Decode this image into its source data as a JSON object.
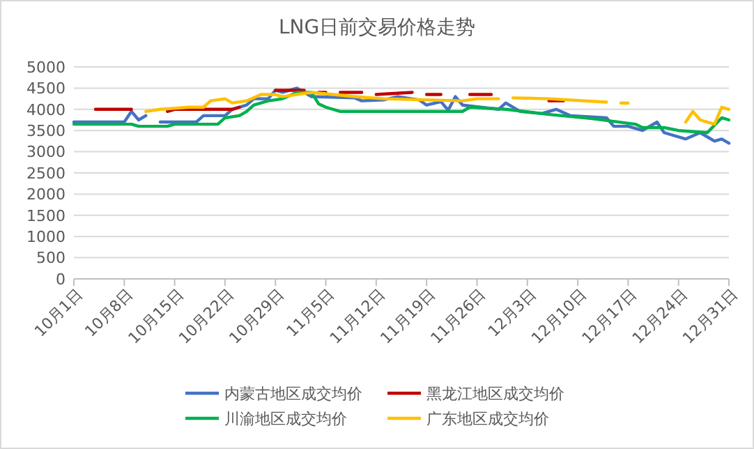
{
  "chart_data": {
    "type": "line",
    "title": "LNG日前交易价格走势",
    "xlim": [
      "--10-01",
      "--12-31"
    ],
    "xticks": [
      {
        "value": "--10-01",
        "label": "10月1日"
      },
      {
        "value": "--10-08",
        "label": "10月8日"
      },
      {
        "value": "--10-15",
        "label": "10月15日"
      },
      {
        "value": "--10-22",
        "label": "10月22日"
      },
      {
        "value": "--10-29",
        "label": "10月29日"
      },
      {
        "value": "--11-05",
        "label": "11月5日"
      },
      {
        "value": "--11-12",
        "label": "11月12日"
      },
      {
        "value": "--11-19",
        "label": "11月19日"
      },
      {
        "value": "--11-26",
        "label": "11月26日"
      },
      {
        "value": "--12-03",
        "label": "12月3日"
      },
      {
        "value": "--12-10",
        "label": "12月10日"
      },
      {
        "value": "--12-17",
        "label": "12月17日"
      },
      {
        "value": "--12-24",
        "label": "12月24日"
      },
      {
        "value": "--12-31",
        "label": "12月31日"
      }
    ],
    "ylim": [
      0,
      5000
    ],
    "yticks": [
      0,
      500,
      1000,
      1500,
      2000,
      2500,
      3000,
      3500,
      4000,
      4500,
      5000
    ],
    "grid": "y",
    "legend": "bottom",
    "marker": "none",
    "line_style": "solid",
    "series": [
      {
        "name": "内蒙古地区成交均价",
        "color": "#4472c4",
        "x": [
          "--10-01",
          "--10-08",
          "--10-09",
          "--10-10",
          "--10-11",
          "--10-12",
          "--10-13",
          "--10-18",
          "--10-19",
          "--10-22",
          "--10-23",
          "--10-25",
          "--10-26",
          "--10-28",
          "--10-29",
          "--10-30",
          "--11-01",
          "--11-03",
          "--11-09",
          "--11-10",
          "--11-13",
          "--11-15",
          "--11-18",
          "--11-19",
          "--11-21",
          "--11-22",
          "--11-23",
          "--11-24",
          "--11-29",
          "--11-30",
          "--12-02",
          "--12-05",
          "--12-07",
          "--12-09",
          "--12-14",
          "--12-15",
          "--12-17",
          "--12-19",
          "--12-21",
          "--12-22",
          "--12-25",
          "--12-27",
          "--12-29",
          "--12-30",
          "--12-31"
        ],
        "values": [
          3700,
          3700,
          3950,
          3750,
          3850,
          null,
          3700,
          3700,
          3850,
          3850,
          4000,
          4100,
          4250,
          4250,
          4450,
          4400,
          4500,
          4300,
          4270,
          4200,
          4220,
          4300,
          4220,
          4100,
          4180,
          3980,
          4300,
          4100,
          4000,
          4150,
          3950,
          3900,
          4000,
          3850,
          3800,
          3600,
          3600,
          3500,
          3700,
          3450,
          3300,
          3450,
          3250,
          3300,
          3200
        ]
      },
      {
        "name": "黑龙江地区成交均价",
        "color": "#c00000",
        "x": [
          "--10-04",
          "--10-09",
          "--10-12",
          "--10-14",
          "--10-15",
          "--10-23",
          "--10-24",
          "--10-26",
          "--10-29",
          "--11-02",
          "--11-03",
          "--11-04",
          "--11-05",
          "--11-06",
          "--11-07",
          "--11-10",
          "--11-11",
          "--11-12",
          "--11-17",
          "--11-18",
          "--11-19",
          "--11-21",
          "--11-23",
          "--11-25",
          "--11-28",
          "--12-02",
          "--12-06",
          "--12-08"
        ],
        "values": [
          4000,
          4000,
          null,
          3950,
          4000,
          4000,
          4050,
          null,
          4450,
          4450,
          null,
          4400,
          4400,
          null,
          4400,
          4400,
          null,
          4350,
          4400,
          null,
          4350,
          4350,
          null,
          4350,
          4350,
          null,
          4200,
          4200
        ]
      },
      {
        "name": "川渝地区成交均价",
        "color": "#00b050",
        "x": [
          "--10-01",
          "--10-09",
          "--10-10",
          "--10-14",
          "--10-15",
          "--10-21",
          "--10-22",
          "--10-24",
          "--10-25",
          "--10-26",
          "--10-27",
          "--10-28",
          "--10-30",
          "--11-01",
          "--11-03",
          "--11-04",
          "--11-05",
          "--11-07",
          "--11-24",
          "--11-25",
          "--11-30",
          "--12-06",
          "--12-12",
          "--12-18",
          "--12-19",
          "--12-22",
          "--12-24",
          "--12-28",
          "--12-30",
          "--12-31"
        ],
        "values": [
          3650,
          3650,
          3600,
          3600,
          3650,
          3650,
          3800,
          3850,
          3950,
          4100,
          4150,
          4200,
          4250,
          4400,
          4400,
          4130,
          4050,
          3950,
          3950,
          4050,
          4000,
          3880,
          3780,
          3650,
          3570,
          3570,
          3500,
          3450,
          3800,
          3750
        ]
      },
      {
        "name": "广东地区成交均价",
        "color": "#ffc000",
        "x": [
          "--10-11",
          "--10-13",
          "--10-17",
          "--10-19",
          "--10-20",
          "--10-22",
          "--10-23",
          "--10-25",
          "--10-27",
          "--10-29",
          "--10-30",
          "--11-01",
          "--11-03",
          "--11-09",
          "--11-13",
          "--11-24",
          "--11-26",
          "--11-29",
          "--11-30",
          "--12-01",
          "--12-06",
          "--12-14",
          "--12-15",
          "--12-16",
          "--12-17",
          "--12-20",
          "--12-25",
          "--12-26",
          "--12-27",
          "--12-28",
          "--12-29",
          "--12-30",
          "--12-31"
        ],
        "values": [
          3950,
          4000,
          4050,
          4050,
          4200,
          4250,
          4150,
          4200,
          4350,
          4350,
          4300,
          4350,
          4400,
          4300,
          4250,
          4200,
          4250,
          4250,
          null,
          4270,
          4250,
          4170,
          null,
          4150,
          4150,
          null,
          3700,
          3950,
          3750,
          3700,
          3650,
          4050,
          4000
        ]
      }
    ]
  }
}
